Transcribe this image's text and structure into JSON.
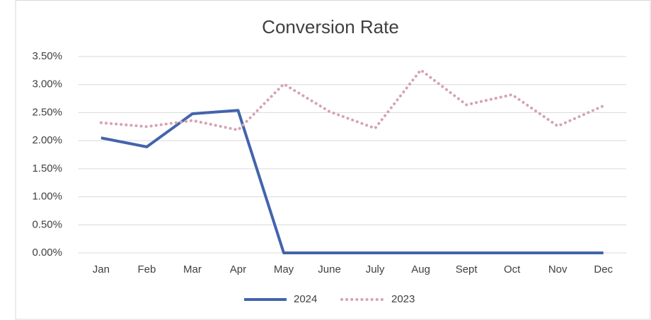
{
  "chart_data": {
    "type": "line",
    "title": "Conversion Rate",
    "categories": [
      "Jan",
      "Feb",
      "Mar",
      "Apr",
      "May",
      "June",
      "July",
      "Aug",
      "Sept",
      "Oct",
      "Nov",
      "Dec"
    ],
    "series": [
      {
        "name": "2024",
        "color": "#4364ad",
        "values": [
          2.05,
          1.89,
          2.48,
          2.54,
          0,
          0,
          0,
          0,
          0,
          0,
          0,
          0
        ]
      },
      {
        "name": "2023",
        "color": "#d6a2b3",
        "values": [
          2.32,
          2.25,
          2.36,
          2.19,
          3.01,
          2.52,
          2.22,
          3.26,
          2.64,
          2.82,
          2.26,
          2.62
        ]
      }
    ],
    "ylim": [
      0,
      3.5
    ],
    "yticks": [
      {
        "value": 0,
        "label": "0.00%"
      },
      {
        "value": 0.5,
        "label": "0.50%"
      },
      {
        "value": 1,
        "label": "1.00%"
      },
      {
        "value": 1.5,
        "label": "1.50%"
      },
      {
        "value": 2,
        "label": "2.00%"
      },
      {
        "value": 2.5,
        "label": "2.50%"
      },
      {
        "value": 3,
        "label": "3.00%"
      },
      {
        "value": 3.5,
        "label": "3.50%"
      }
    ],
    "grid": true,
    "legend": "bottom"
  }
}
